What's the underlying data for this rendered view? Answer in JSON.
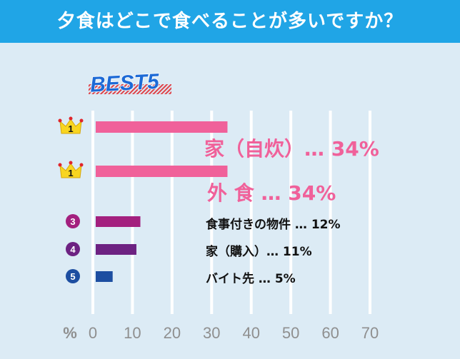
{
  "header": {
    "title": "夕食はどこで食べることが多いですか？"
  },
  "badge": {
    "text": "BEST5"
  },
  "colors": {
    "header_bg": "#20a5e6",
    "background": "#dcebf5",
    "grid": "#ffffff",
    "rank1_bar": "#f0619a",
    "rank3_bar": "#a3207e",
    "rank4_bar": "#6d2282",
    "rank5_bar": "#1d4ea1",
    "badge_text": "#1d6ad6",
    "crown": "#f8d521"
  },
  "chart_data": {
    "type": "bar",
    "orientation": "horizontal",
    "title": "夕食はどこで食べることが多いですか？",
    "xlabel": "%",
    "xlim": [
      0,
      70
    ],
    "xticks": [
      "0",
      "10",
      "20",
      "30",
      "40",
      "50",
      "60",
      "70"
    ],
    "grid": true,
    "categories": [
      "家（自炊）",
      "外 食",
      "食事付きの物件",
      "家（購入）",
      "バイト先"
    ],
    "values": [
      34,
      34,
      12,
      11,
      5
    ],
    "ranks": [
      "1",
      "1",
      "3",
      "4",
      "5"
    ],
    "labels": [
      "家（自炊）…  34%",
      "外  食  …  34%",
      "食事付きの物件  …  12%",
      "家（購入）…  11%",
      "バイト先  …  5%"
    ],
    "rank_icons": [
      "crown-icon",
      "crown-icon",
      "circle-number-icon",
      "circle-number-icon",
      "circle-number-icon"
    ]
  }
}
